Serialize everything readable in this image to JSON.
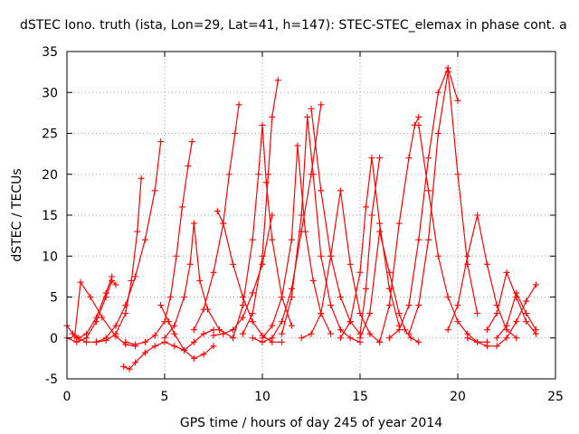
{
  "chart_data": {
    "type": "scatter",
    "title": "dSTEC Iono. truth (ista, Lon=29, Lat=41, h=147): STEC-STEC_elemax in phase cont. a",
    "xlabel": "GPS time / hours of day 245 of year 2014",
    "ylabel": "dSTEC  / TECUs",
    "xlim": [
      0,
      25
    ],
    "ylim": [
      -5,
      35
    ],
    "xticks": [
      0,
      5,
      10,
      15,
      20,
      25
    ],
    "yticks": [
      -5,
      0,
      5,
      10,
      15,
      20,
      25,
      30,
      35
    ],
    "grid": true,
    "marker": "+",
    "color": "#ff0000",
    "series": [
      {
        "x": [
          0.0,
          0.3,
          0.6,
          1.0,
          1.5,
          2.0,
          2.3
        ],
        "y": [
          1.5,
          0.5,
          0.0,
          0.5,
          2.5,
          5.5,
          7.5
        ]
      },
      {
        "x": [
          0.4,
          0.7,
          1.2,
          1.8,
          2.5,
          3.0,
          3.5
        ],
        "y": [
          0.2,
          6.8,
          5.0,
          2.5,
          0.2,
          -0.8,
          -1.0
        ]
      },
      {
        "x": [
          0.0,
          0.5,
          1.0,
          1.5,
          2.0,
          2.3,
          2.5
        ],
        "y": [
          0.0,
          -0.5,
          0.0,
          2.0,
          5.0,
          7.0,
          6.5
        ]
      },
      {
        "x": [
          0.5,
          1.0,
          1.5,
          2.0,
          2.5,
          3.0,
          3.5,
          4.0,
          4.5,
          4.8
        ],
        "y": [
          0.0,
          -0.5,
          -0.5,
          0.0,
          1.5,
          4.0,
          7.5,
          12.0,
          18.0,
          24.0
        ]
      },
      {
        "x": [
          1.5,
          2.0,
          2.5,
          3.0,
          3.3,
          3.6,
          3.8
        ],
        "y": [
          -0.5,
          -0.3,
          0.5,
          3.0,
          7.0,
          13.0,
          19.5
        ]
      },
      {
        "x": [
          3.0,
          3.5,
          4.0,
          4.5,
          5.0,
          5.3,
          5.6,
          5.9,
          6.2,
          6.4
        ],
        "y": [
          -0.5,
          -0.8,
          -0.5,
          0.3,
          2.0,
          5.0,
          10.0,
          16.0,
          21.0,
          24.0
        ]
      },
      {
        "x": [
          2.9,
          3.2,
          3.5,
          4.0,
          4.5,
          5.0,
          5.5,
          6.0,
          6.5,
          7.0,
          7.5
        ],
        "y": [
          -3.5,
          -3.8,
          -3.0,
          -1.8,
          -1.0,
          -0.5,
          -1.0,
          -1.5,
          -0.5,
          0.5,
          1.0
        ]
      },
      {
        "x": [
          4.8,
          5.2,
          5.5,
          6.0,
          6.5,
          7.0,
          7.5
        ],
        "y": [
          4.0,
          2.0,
          0.5,
          -1.5,
          -2.5,
          -2.0,
          -1.0
        ]
      },
      {
        "x": [
          5.0,
          5.5,
          6.0,
          6.3,
          6.5,
          6.8,
          7.2,
          7.8,
          8.5
        ],
        "y": [
          0.0,
          1.5,
          5.0,
          9.0,
          14.0,
          7.0,
          3.5,
          1.0,
          0.0
        ]
      },
      {
        "x": [
          6.5,
          7.0,
          7.5,
          8.0,
          8.3,
          8.6,
          8.8
        ],
        "y": [
          1.0,
          3.5,
          8.0,
          14.0,
          20.0,
          25.0,
          28.5
        ]
      },
      {
        "x": [
          7.5,
          8.0,
          8.5,
          9.0,
          9.5,
          10.0,
          10.5
        ],
        "y": [
          0.3,
          0.5,
          1.0,
          2.5,
          5.5,
          9.0,
          15.0
        ]
      },
      {
        "x": [
          7.7,
          8.0,
          8.5,
          9.0,
          9.5,
          10.0,
          10.5,
          11.0
        ],
        "y": [
          15.5,
          14.0,
          9.0,
          5.0,
          2.0,
          0.3,
          -0.5,
          -0.5
        ]
      },
      {
        "x": [
          8.5,
          9.0,
          9.5,
          9.8,
          10.0,
          10.2,
          10.5,
          11.0,
          11.5
        ],
        "y": [
          0.0,
          4.0,
          12.0,
          20.0,
          26.0,
          19.0,
          12.0,
          5.0,
          1.5
        ]
      },
      {
        "x": [
          9.0,
          9.5,
          10.0,
          10.3,
          10.5,
          10.8
        ],
        "y": [
          0.5,
          3.0,
          10.0,
          20.0,
          27.0,
          31.5
        ]
      },
      {
        "x": [
          9.5,
          10.0,
          10.5,
          11.0,
          11.5,
          12.0,
          12.5,
          13.0
        ],
        "y": [
          0.0,
          -0.5,
          0.0,
          2.0,
          6.0,
          13.0,
          20.0,
          28.5
        ]
      },
      {
        "x": [
          10.0,
          10.5,
          11.0,
          11.5,
          11.8,
          12.2,
          12.6,
          13.0,
          13.5
        ],
        "y": [
          0.0,
          1.5,
          5.0,
          12.0,
          23.5,
          13.0,
          7.0,
          3.0,
          0.5
        ]
      },
      {
        "x": [
          11.0,
          11.5,
          12.0,
          12.3,
          12.6,
          13.0,
          13.5,
          14.0,
          14.5,
          15.0
        ],
        "y": [
          0.5,
          5.0,
          15.0,
          27.0,
          20.0,
          10.0,
          4.0,
          1.0,
          0.0,
          -0.5
        ]
      },
      {
        "x": [
          12.0,
          12.5,
          13.0,
          13.5,
          14.0,
          14.5,
          15.0,
          15.5,
          16.0
        ],
        "y": [
          0.0,
          0.5,
          3.0,
          10.0,
          18.0,
          9.0,
          3.0,
          0.5,
          -0.5
        ]
      },
      {
        "x": [
          12.5,
          13.0,
          13.5,
          14.0,
          14.5,
          15.0,
          15.3,
          15.6,
          16.0
        ],
        "y": [
          28.0,
          18.0,
          10.0,
          5.0,
          2.0,
          0.5,
          6.0,
          15.0,
          22.0
        ]
      },
      {
        "x": [
          14.0,
          14.5,
          15.0,
          15.3,
          15.6,
          16.0,
          16.5,
          17.0
        ],
        "y": [
          0.0,
          2.0,
          8.0,
          16.0,
          22.0,
          14.0,
          6.0,
          1.5
        ]
      },
      {
        "x": [
          15.0,
          15.5,
          16.0,
          16.5,
          17.0,
          17.3,
          17.6,
          18.0
        ],
        "y": [
          0.0,
          3.0,
          13.0,
          8.0,
          3.0,
          1.0,
          0.0,
          -0.5
        ]
      },
      {
        "x": [
          16.0,
          16.5,
          17.0,
          17.5,
          17.8,
          18.0
        ],
        "y": [
          -0.5,
          4.0,
          14.0,
          22.0,
          26.0,
          27.0
        ]
      },
      {
        "x": [
          16.5,
          17.0,
          17.5,
          18.0,
          18.5,
          19.0,
          19.5,
          20.0
        ],
        "y": [
          0.0,
          1.0,
          4.0,
          12.0,
          22.0,
          30.0,
          33.0,
          29.0
        ]
      },
      {
        "x": [
          17.5,
          18.0,
          18.5,
          19.0,
          19.5,
          20.0,
          20.5,
          21.0
        ],
        "y": [
          0.5,
          4.0,
          12.0,
          25.0,
          32.5,
          20.0,
          9.0,
          3.0
        ]
      },
      {
        "x": [
          18.0,
          18.5,
          19.0,
          19.5,
          20.0,
          20.5,
          21.0,
          21.5
        ],
        "y": [
          26.0,
          18.0,
          10.0,
          5.0,
          2.0,
          0.5,
          -0.5,
          -0.5
        ]
      },
      {
        "x": [
          19.5,
          20.0,
          20.5,
          21.0,
          21.5,
          22.0,
          22.5,
          23.0
        ],
        "y": [
          1.0,
          4.0,
          10.0,
          15.0,
          9.0,
          4.0,
          1.0,
          0.0
        ]
      },
      {
        "x": [
          20.5,
          21.0,
          21.5,
          22.0,
          22.5,
          23.0,
          23.5,
          24.0
        ],
        "y": [
          0.0,
          -0.5,
          -1.0,
          -1.0,
          0.0,
          2.0,
          4.5,
          6.5
        ]
      },
      {
        "x": [
          21.5,
          22.0,
          22.5,
          23.0,
          23.5,
          24.0
        ],
        "y": [
          1.0,
          3.0,
          8.0,
          5.0,
          2.0,
          0.5
        ]
      },
      {
        "x": [
          22.0,
          22.5,
          23.0,
          23.5,
          24.0
        ],
        "y": [
          0.0,
          1.5,
          5.5,
          3.0,
          1.0
        ]
      }
    ]
  }
}
